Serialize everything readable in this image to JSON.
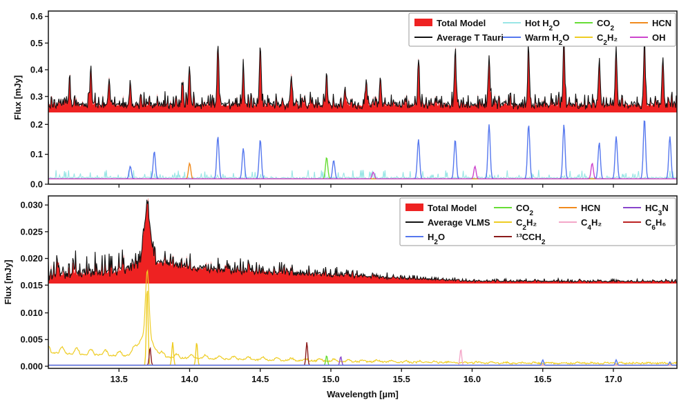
{
  "figure": {
    "xlabel": "Wavelength [µm]"
  },
  "chart_data": [
    {
      "type": "line",
      "panel": "top",
      "ylabel": "Flux [mJy]",
      "xlim": [
        13.0,
        17.45
      ],
      "upper_ylim": [
        0.24,
        0.62
      ],
      "upper_yticks": [
        {
          "value": 0.3,
          "label": "0.3"
        },
        {
          "value": 0.4,
          "label": "0.4"
        },
        {
          "value": 0.5,
          "label": "0.5"
        },
        {
          "value": 0.6,
          "label": "0.6"
        }
      ],
      "lower_ylim": [
        0.0,
        0.24
      ],
      "lower_yticks": [
        {
          "value": 0.0,
          "label": "0.0"
        },
        {
          "value": 0.1,
          "label": "0.1"
        },
        {
          "value": 0.2,
          "label": "0.2"
        }
      ],
      "legend_position": "top-right",
      "legend": [
        {
          "label": "Total Model",
          "sub": "",
          "tail": "",
          "color": "#ee2222",
          "style": "patch"
        },
        {
          "label": "Average T Tauri",
          "sub": "",
          "tail": "",
          "color": "#111111",
          "style": "line"
        },
        {
          "label": "Hot H",
          "sub": "2",
          "tail": "O",
          "color": "#99e6e6",
          "style": "line"
        },
        {
          "label": "Warm H",
          "sub": "2",
          "tail": "O",
          "color": "#5577ee",
          "style": "line"
        },
        {
          "label": "CO",
          "sub": "2",
          "tail": "",
          "color": "#66dd33",
          "style": "line"
        },
        {
          "label": "C",
          "sub": "2",
          "tail": "H₂",
          "color": "#eecc22",
          "style": "line"
        },
        {
          "label": "HCN",
          "sub": "",
          "tail": "",
          "color": "#f08a1c",
          "style": "line"
        },
        {
          "label": "OH",
          "sub": "",
          "tail": "",
          "color": "#cc44cc",
          "style": "line"
        }
      ],
      "baseline": 0.262,
      "strong_lines": [
        {
          "x": 13.15,
          "y": 0.35
        },
        {
          "x": 13.3,
          "y": 0.41
        },
        {
          "x": 13.43,
          "y": 0.37
        },
        {
          "x": 13.58,
          "y": 0.35
        },
        {
          "x": 13.95,
          "y": 0.34
        },
        {
          "x": 14.0,
          "y": 0.39
        },
        {
          "x": 14.2,
          "y": 0.48
        },
        {
          "x": 14.38,
          "y": 0.4
        },
        {
          "x": 14.5,
          "y": 0.49
        },
        {
          "x": 14.72,
          "y": 0.38
        },
        {
          "x": 14.97,
          "y": 0.39
        },
        {
          "x": 15.1,
          "y": 0.33
        },
        {
          "x": 15.25,
          "y": 0.35
        },
        {
          "x": 15.35,
          "y": 0.37
        },
        {
          "x": 15.62,
          "y": 0.44
        },
        {
          "x": 15.88,
          "y": 0.46
        },
        {
          "x": 16.12,
          "y": 0.45
        },
        {
          "x": 16.4,
          "y": 0.47
        },
        {
          "x": 16.65,
          "y": 0.52
        },
        {
          "x": 16.9,
          "y": 0.44
        },
        {
          "x": 17.02,
          "y": 0.47
        },
        {
          "x": 17.22,
          "y": 0.51
        },
        {
          "x": 17.35,
          "y": 0.44
        }
      ],
      "component_peaks": [
        {
          "name": "Warm H2O",
          "color": "#5577ee",
          "points": [
            [
              13.58,
              0.06
            ],
            [
              13.75,
              0.11
            ],
            [
              14.2,
              0.16
            ],
            [
              14.38,
              0.12
            ],
            [
              14.5,
              0.15
            ],
            [
              15.02,
              0.08
            ],
            [
              15.62,
              0.15
            ],
            [
              15.88,
              0.15
            ],
            [
              16.12,
              0.2
            ],
            [
              16.4,
              0.2
            ],
            [
              16.65,
              0.2
            ],
            [
              16.9,
              0.14
            ],
            [
              17.02,
              0.16
            ],
            [
              17.22,
              0.22
            ],
            [
              17.4,
              0.16
            ]
          ]
        },
        {
          "name": "CO2",
          "color": "#66dd33",
          "points": [
            [
              14.97,
              0.09
            ]
          ]
        },
        {
          "name": "HCN",
          "color": "#f08a1c",
          "points": [
            [
              14.0,
              0.07
            ]
          ]
        },
        {
          "name": "OH",
          "color": "#cc44cc",
          "points": [
            [
              15.3,
              0.04
            ],
            [
              16.02,
              0.06
            ],
            [
              16.85,
              0.07
            ]
          ]
        }
      ]
    },
    {
      "type": "line",
      "panel": "bottom",
      "ylabel": "Flux [mJy]",
      "xlim": [
        13.0,
        17.45
      ],
      "xticks": [
        13.5,
        14.0,
        14.5,
        15.0,
        15.5,
        16.0,
        16.5,
        17.0
      ],
      "xticklabels": [
        "13.5",
        "14.0",
        "14.5",
        "15.0",
        "15.5",
        "16.0",
        "16.5",
        "17.0"
      ],
      "upper_ylim": [
        0.0153,
        0.0317
      ],
      "upper_yticks": [
        {
          "value": 0.015,
          "label": "0.015"
        },
        {
          "value": 0.02,
          "label": "0.020"
        },
        {
          "value": 0.025,
          "label": "0.025"
        },
        {
          "value": 0.03,
          "label": "0.030"
        }
      ],
      "lower_ylim": [
        -0.0004,
        0.0155
      ],
      "lower_yticks": [
        {
          "value": 0.0,
          "label": "0.000"
        },
        {
          "value": 0.005,
          "label": "0.005"
        },
        {
          "value": 0.01,
          "label": "0.010"
        }
      ],
      "legend_position": "top-right",
      "legend": [
        {
          "label": "Total Model",
          "sub": "",
          "tail": "",
          "color": "#ee2222",
          "style": "patch"
        },
        {
          "label": "Average VLMS",
          "sub": "",
          "tail": "",
          "color": "#111111",
          "style": "line"
        },
        {
          "label": "H",
          "sub": "2",
          "tail": "O",
          "color": "#5577ee",
          "style": "line"
        },
        {
          "label": "CO",
          "sub": "2",
          "tail": "",
          "color": "#66dd33",
          "style": "line"
        },
        {
          "label": "C",
          "sub": "2",
          "tail": "H₂",
          "color": "#eecc22",
          "style": "line"
        },
        {
          "label": "¹³CCH",
          "sub": "2",
          "tail": "",
          "color": "#8b1a1a",
          "style": "line"
        },
        {
          "label": "HCN",
          "sub": "",
          "tail": "",
          "color": "#f08a1c",
          "style": "line"
        },
        {
          "label": "C",
          "sub": "4",
          "tail": "H₂",
          "color": "#f4a6c8",
          "style": "line"
        },
        {
          "label": "HC",
          "sub": "3",
          "tail": "N",
          "color": "#8844cc",
          "style": "line"
        },
        {
          "label": "C",
          "sub": "6",
          "tail": "H₆",
          "color": "#bb2222",
          "style": "line"
        }
      ],
      "model_profile": [
        [
          13.0,
          0.0165
        ],
        [
          13.5,
          0.0172
        ],
        [
          13.65,
          0.019
        ],
        [
          13.7,
          0.0305
        ],
        [
          13.75,
          0.019
        ],
        [
          14.0,
          0.018
        ],
        [
          14.5,
          0.0172
        ],
        [
          15.0,
          0.0168
        ],
        [
          15.5,
          0.0162
        ],
        [
          16.0,
          0.0157
        ],
        [
          17.45,
          0.0156
        ]
      ],
      "component_peaks": [
        {
          "name": "C2H2",
          "color": "#eecc22",
          "points": [
            [
              13.7,
              0.015
            ],
            [
              13.88,
              0.0045
            ],
            [
              14.05,
              0.0045
            ]
          ]
        },
        {
          "name": "13CCH2",
          "color": "#8b1a1a",
          "points": [
            [
              13.72,
              0.0035
            ],
            [
              14.83,
              0.0045
            ]
          ]
        },
        {
          "name": "CO2",
          "color": "#66dd33",
          "points": [
            [
              14.97,
              0.002
            ]
          ]
        },
        {
          "name": "HC3N",
          "color": "#8844cc",
          "points": [
            [
              15.07,
              0.0018
            ]
          ]
        },
        {
          "name": "C4H2",
          "color": "#f4a6c8",
          "points": [
            [
              15.92,
              0.0032
            ]
          ]
        },
        {
          "name": "H2O",
          "color": "#5577ee",
          "points": [
            [
              16.5,
              0.0012
            ],
            [
              17.02,
              0.0012
            ],
            [
              17.4,
              0.0008
            ]
          ]
        }
      ]
    }
  ]
}
